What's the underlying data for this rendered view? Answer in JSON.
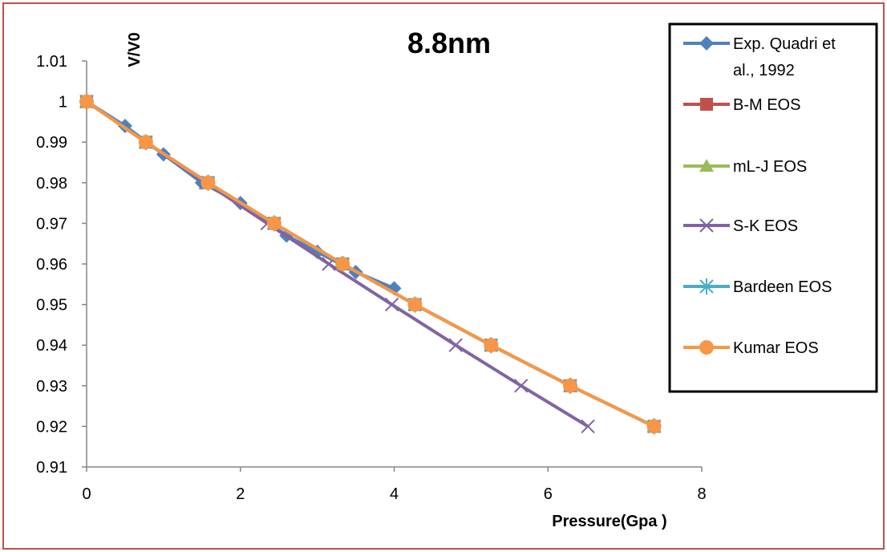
{
  "chart_data": {
    "type": "line",
    "title": "8.8nm",
    "xlabel": "Pressure(Gpa )",
    "ylabel": "V/V0",
    "xlim": [
      0,
      8
    ],
    "ylim": [
      0.91,
      1.01
    ],
    "x_ticks": [
      "0",
      "2",
      "4",
      "6",
      "8"
    ],
    "y_ticks": [
      "0.91",
      "0.92",
      "0.93",
      "0.94",
      "0.95",
      "0.96",
      "0.97",
      "0.98",
      "0.99",
      "1",
      "1.01"
    ],
    "grid": false,
    "legend_position": "right",
    "series": [
      {
        "name": "Exp. Quadri et al., 1992",
        "legend_lines": [
          "Exp. Quadri et",
          "al., 1992"
        ],
        "color": "#4f81bd",
        "marker": "diamond",
        "x": [
          0,
          0.5,
          1.0,
          1.5,
          2.0,
          2.6,
          3.0,
          3.5,
          4.0
        ],
        "y": [
          1.0,
          0.994,
          0.987,
          0.98,
          0.975,
          0.967,
          0.963,
          0.958,
          0.954
        ]
      },
      {
        "name": "B-M EOS",
        "color": "#c0504d",
        "marker": "square",
        "x": [
          0,
          0.77,
          1.58,
          2.44,
          3.33,
          4.27,
          5.26,
          6.29,
          7.38
        ],
        "y": [
          1.0,
          0.99,
          0.98,
          0.97,
          0.96,
          0.95,
          0.94,
          0.93,
          0.92
        ]
      },
      {
        "name": "mL-J EOS",
        "color": "#9bbb59",
        "marker": "triangle",
        "x": [
          0,
          0.77,
          1.58,
          2.44,
          3.33,
          4.27,
          5.26,
          6.29,
          7.38
        ],
        "y": [
          1.0,
          0.99,
          0.98,
          0.97,
          0.96,
          0.95,
          0.94,
          0.93,
          0.92
        ]
      },
      {
        "name": "S-K EOS",
        "color": "#8064a2",
        "marker": "x",
        "x": [
          0,
          0.77,
          1.55,
          2.35,
          3.15,
          3.97,
          4.8,
          5.65,
          6.52
        ],
        "y": [
          1.0,
          0.99,
          0.98,
          0.97,
          0.96,
          0.95,
          0.94,
          0.93,
          0.92
        ]
      },
      {
        "name": "Bardeen EOS",
        "color": "#4bacc6",
        "marker": "star",
        "x": [
          0,
          0.77,
          1.58,
          2.44,
          3.33,
          4.27,
          5.26,
          6.29,
          7.38
        ],
        "y": [
          1.0,
          0.99,
          0.98,
          0.97,
          0.96,
          0.95,
          0.94,
          0.93,
          0.92
        ]
      },
      {
        "name": "Kumar EOS",
        "color": "#f79646",
        "marker": "circle",
        "x": [
          0,
          0.77,
          1.58,
          2.44,
          3.33,
          4.27,
          5.26,
          6.29,
          7.38
        ],
        "y": [
          1.0,
          0.99,
          0.98,
          0.97,
          0.96,
          0.95,
          0.94,
          0.93,
          0.92
        ]
      }
    ]
  }
}
